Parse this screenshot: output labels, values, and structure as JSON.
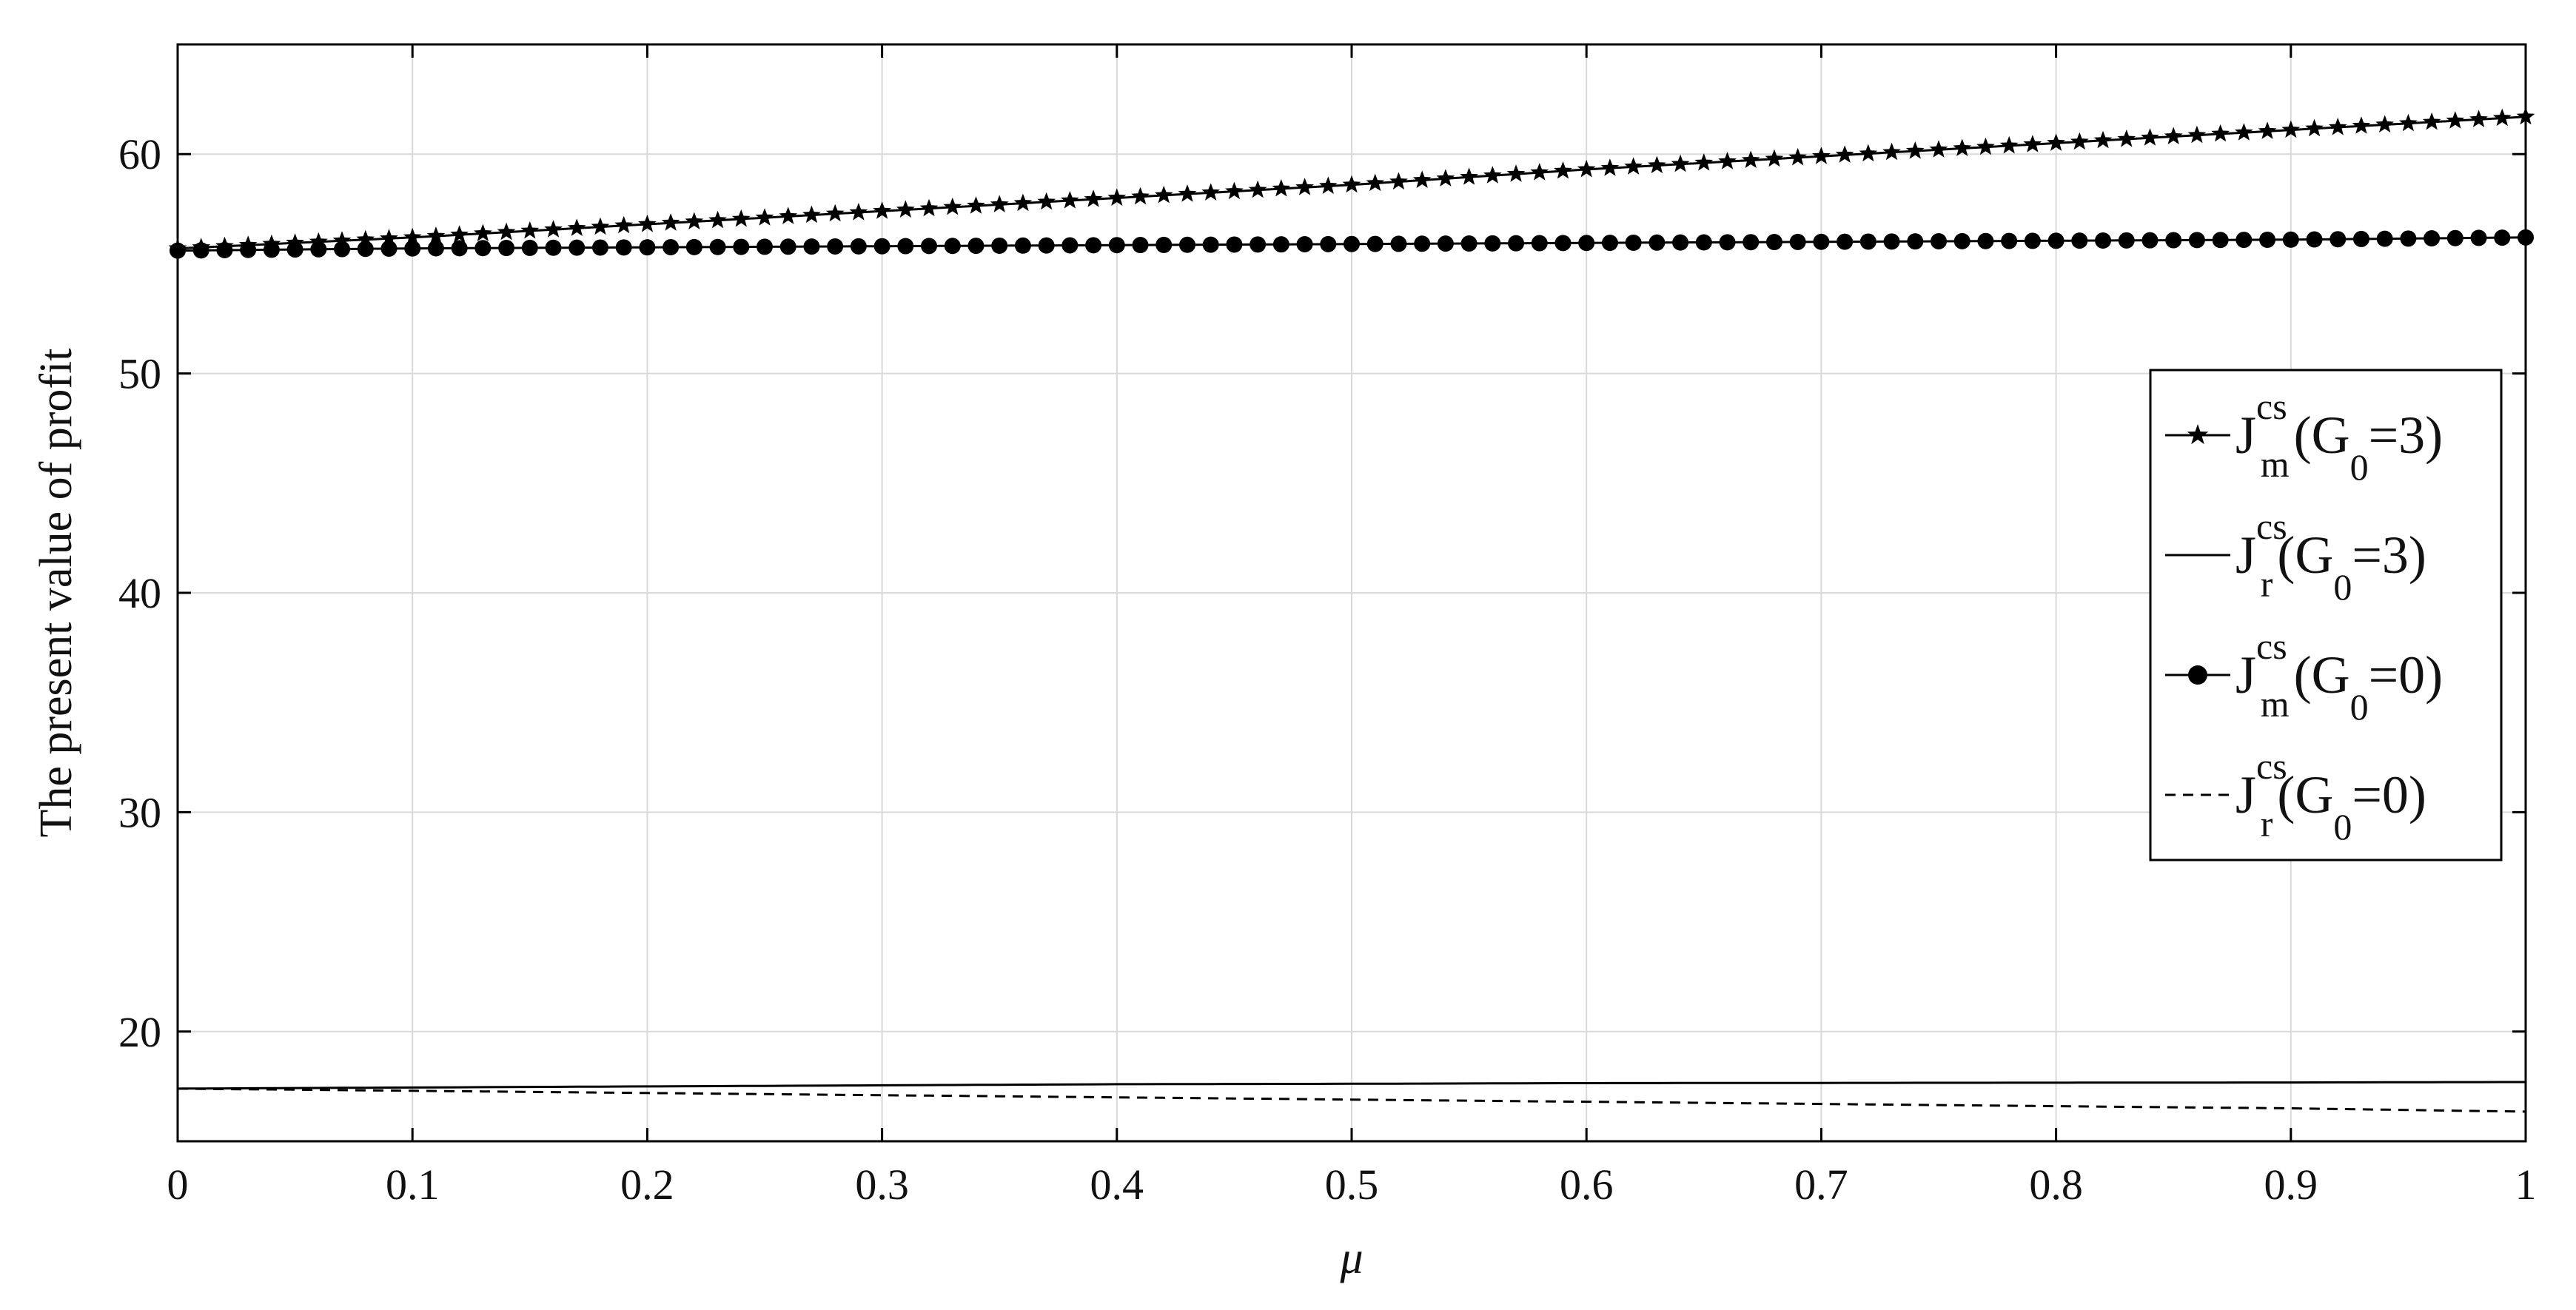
{
  "chart_data": {
    "type": "line",
    "title": "",
    "xlabel": "μ",
    "ylabel": "The present value of profit",
    "xlim": [
      0,
      1
    ],
    "ylim": [
      15,
      65
    ],
    "x_ticks": [
      0,
      0.1,
      0.2,
      0.3,
      0.4,
      0.5,
      0.6,
      0.7,
      0.8,
      0.9,
      1
    ],
    "x_tick_labels": [
      "0",
      "0.1",
      "0.2",
      "0.3",
      "0.4",
      "0.5",
      "0.6",
      "0.7",
      "0.8",
      "0.9",
      "1"
    ],
    "y_ticks": [
      20,
      30,
      40,
      50,
      60
    ],
    "y_tick_labels": [
      "20",
      "30",
      "40",
      "50",
      "60"
    ],
    "grid": true,
    "legend_position": "right",
    "series": [
      {
        "name": "J_m^cs(G_0=3)",
        "legend": {
          "main": "J",
          "sup": "cs",
          "sub": "m",
          "paren": "(G",
          "paren_sub": "0",
          "tail": "=3)"
        },
        "style": "line-star",
        "color": "#000000",
        "x": [
          0,
          0.1,
          0.2,
          0.3,
          0.4,
          0.5,
          0.6,
          0.7,
          0.8,
          0.9,
          1
        ],
        "values": [
          55.7,
          56.2,
          56.8,
          57.4,
          58.0,
          58.6,
          59.3,
          59.9,
          60.5,
          61.1,
          61.7
        ]
      },
      {
        "name": "J_r^cs(G_0=3)",
        "legend": {
          "main": "J",
          "sup": "cs",
          "sub": "r",
          "paren": "(G",
          "paren_sub": "0",
          "tail": "=3)"
        },
        "style": "solid",
        "color": "#000000",
        "x": [
          0,
          0.1,
          0.2,
          0.3,
          0.4,
          0.5,
          0.6,
          0.7,
          0.8,
          0.9,
          1
        ],
        "values": [
          17.4,
          17.45,
          17.5,
          17.55,
          17.6,
          17.62,
          17.65,
          17.66,
          17.67,
          17.68,
          17.7
        ]
      },
      {
        "name": "J_m^cs(G_0=0)",
        "legend": {
          "main": "J",
          "sup": "cs",
          "sub": "m",
          "paren": "(G",
          "paren_sub": "0",
          "tail": "=0)"
        },
        "style": "line-dot",
        "color": "#000000",
        "x": [
          0,
          0.1,
          0.2,
          0.3,
          0.4,
          0.5,
          0.6,
          0.7,
          0.8,
          0.9,
          1
        ],
        "values": [
          55.6,
          55.7,
          55.75,
          55.8,
          55.85,
          55.9,
          55.95,
          56.0,
          56.05,
          56.1,
          56.2
        ]
      },
      {
        "name": "J_r^cs(G_0=0)",
        "legend": {
          "main": "J",
          "sup": "cs",
          "sub": "r",
          "paren": "(G",
          "paren_sub": "0",
          "tail": "=0)"
        },
        "style": "dashed",
        "color": "#000000",
        "x": [
          0,
          0.1,
          0.2,
          0.3,
          0.4,
          0.5,
          0.6,
          0.7,
          0.8,
          0.9,
          1
        ],
        "values": [
          17.4,
          17.3,
          17.2,
          17.1,
          17.0,
          16.9,
          16.8,
          16.7,
          16.6,
          16.5,
          16.35
        ]
      }
    ]
  }
}
